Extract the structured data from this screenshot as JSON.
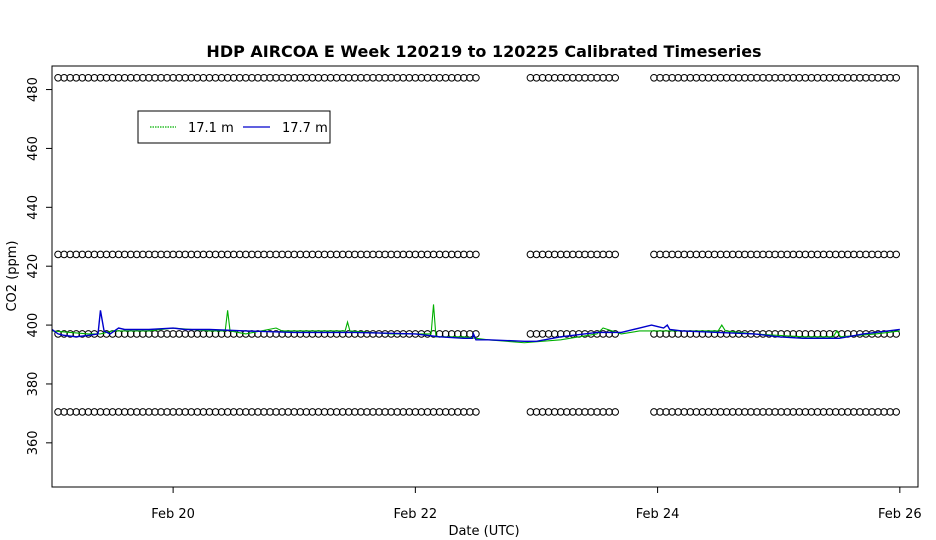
{
  "chart_data": {
    "type": "line",
    "title": "HDP AIRCOA E  Week 120219 to 120225  Calibrated Timeseries",
    "xlabel": "Date (UTC)",
    "ylabel": "CO2 (ppm)",
    "xlim": [
      19.0,
      26.15
    ],
    "ylim": [
      345,
      488
    ],
    "x_ticks": [
      20,
      22,
      24,
      26
    ],
    "x_tick_labels": [
      "Feb 20",
      "Feb 22",
      "Feb 24",
      "Feb 26"
    ],
    "y_ticks": [
      360,
      380,
      400,
      420,
      440,
      460,
      480
    ],
    "y_tick_labels": [
      "360",
      "380",
      "400",
      "420",
      "440",
      "460",
      "480"
    ],
    "grid": false,
    "legend_position": "top-left",
    "series": [
      {
        "name": "17.1 m",
        "color": "#00b000",
        "x": [
          19.0,
          19.3,
          19.4,
          19.5,
          19.8,
          20.0,
          20.3,
          20.43,
          20.45,
          20.47,
          20.6,
          20.85,
          20.9,
          21.2,
          21.42,
          21.44,
          21.46,
          21.8,
          22.1,
          22.13,
          22.15,
          22.17,
          22.4,
          22.6,
          22.9,
          23.2,
          23.5,
          23.55,
          23.7,
          23.85,
          24.05,
          24.3,
          24.5,
          24.53,
          24.56,
          24.8,
          25.2,
          25.45,
          25.48,
          25.51,
          25.8,
          26.0
        ],
        "y": [
          398,
          397,
          397,
          398,
          398,
          399,
          398,
          398,
          405,
          398,
          397,
          399,
          398,
          398,
          398,
          401,
          398,
          397,
          397,
          397,
          407,
          396,
          396,
          395,
          394,
          395,
          397,
          399,
          397,
          398,
          398,
          398,
          398,
          400,
          398,
          397,
          396,
          396,
          398,
          396,
          397,
          398
        ]
      },
      {
        "name": "17.7 m",
        "color": "#0000cc",
        "x": [
          19.0,
          19.05,
          19.1,
          19.2,
          19.3,
          19.38,
          19.4,
          19.43,
          19.48,
          19.55,
          19.6,
          19.8,
          20.0,
          20.1,
          20.3,
          20.6,
          21.0,
          21.5,
          22.0,
          22.2,
          22.4,
          22.47,
          22.48,
          22.5,
          22.6,
          22.9,
          23.0,
          23.2,
          23.5,
          23.7,
          23.85,
          23.95,
          24.0,
          24.05,
          24.08,
          24.1,
          24.2,
          24.5,
          24.8,
          25.0,
          25.2,
          25.5,
          25.7,
          26.0
        ],
        "y": [
          398.5,
          397,
          396.5,
          396,
          396.5,
          397,
          405,
          398,
          397,
          399,
          398.5,
          398.5,
          399,
          398.5,
          398.5,
          398,
          397.5,
          397.5,
          397,
          396,
          395.5,
          395.5,
          397,
          395,
          395,
          394.5,
          394.5,
          396,
          397.5,
          397.5,
          399,
          400,
          399.5,
          399,
          400,
          398.5,
          398,
          397.5,
          397,
          396,
          395.5,
          395.5,
          397,
          398.5
        ]
      },
      {
        "name": "",
        "type": "scatter",
        "marker": "circle-open",
        "color": "#000000",
        "segments": [
          {
            "x_start": 19.05,
            "x_end": 22.5,
            "step": 0.05,
            "levels": [
              484,
              424,
              397,
              370.5
            ]
          },
          {
            "x_start": 22.95,
            "x_end": 23.65,
            "step": 0.05,
            "levels": [
              484,
              424,
              397,
              370.5
            ]
          },
          {
            "x_start": 23.97,
            "x_end": 26.0,
            "step": 0.05,
            "levels": [
              484,
              424,
              397,
              370.5
            ]
          }
        ]
      }
    ]
  }
}
